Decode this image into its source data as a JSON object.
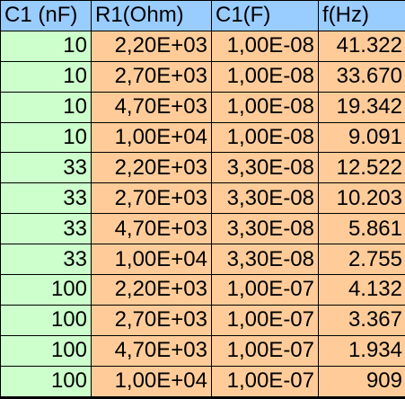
{
  "table": {
    "headers": [
      "C1 (nF)",
      "R1(Ohm)",
      "C1(F)",
      "f(Hz)"
    ],
    "rows": [
      [
        "10",
        "2,20E+03",
        "1,00E-08",
        "41.322"
      ],
      [
        "10",
        "2,70E+03",
        "1,00E-08",
        "33.670"
      ],
      [
        "10",
        "4,70E+03",
        "1,00E-08",
        "19.342"
      ],
      [
        "10",
        "1,00E+04",
        "1,00E-08",
        "9.091"
      ],
      [
        "33",
        "2,20E+03",
        "3,30E-08",
        "12.522"
      ],
      [
        "33",
        "2,70E+03",
        "3,30E-08",
        "10.203"
      ],
      [
        "33",
        "4,70E+03",
        "3,30E-08",
        "5.861"
      ],
      [
        "33",
        "1,00E+04",
        "3,30E-08",
        "2.755"
      ],
      [
        "100",
        "2,20E+03",
        "1,00E-07",
        "4.132"
      ],
      [
        "100",
        "2,70E+03",
        "1,00E-07",
        "3.367"
      ],
      [
        "100",
        "4,70E+03",
        "1,00E-07",
        "1.934"
      ],
      [
        "100",
        "1,00E+04",
        "1,00E-07",
        "909"
      ]
    ]
  },
  "colors": {
    "header_bg": "#99ccff",
    "first_column_bg": "#ccffcc",
    "data_bg": "#ffcc99",
    "gridline": "#000000"
  }
}
